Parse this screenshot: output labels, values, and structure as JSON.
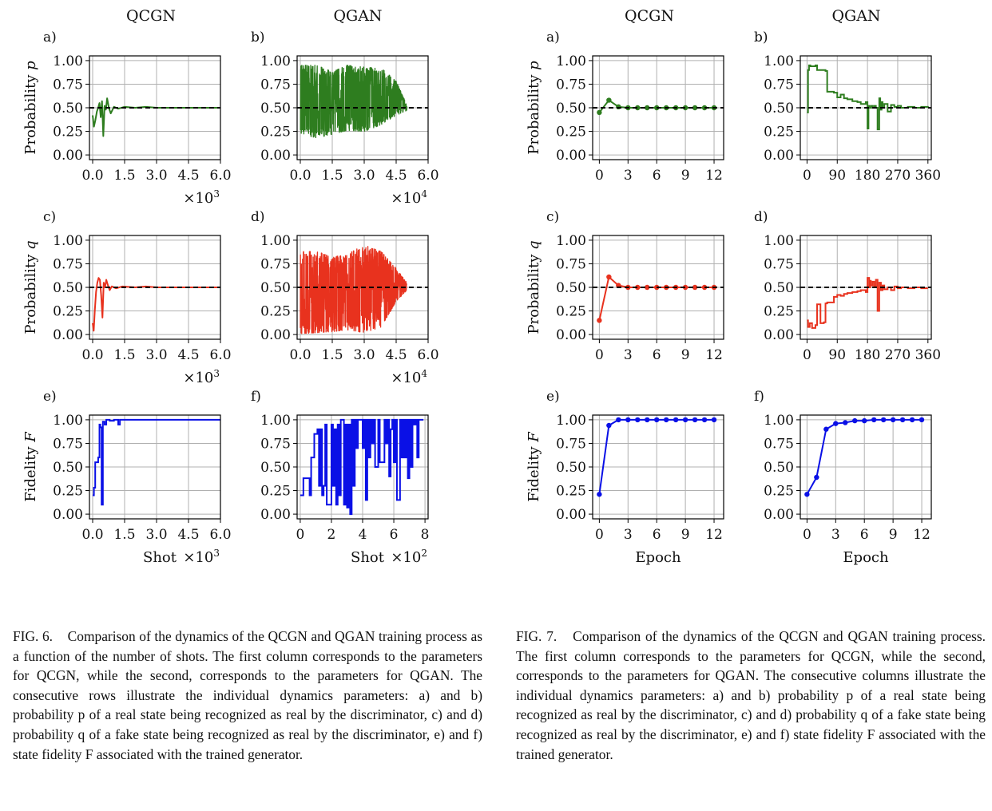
{
  "figures": [
    {
      "columns": [
        "QCGN",
        "QGAN"
      ],
      "caption": {
        "label": "FIG. 6.",
        "text": "Comparison of the dynamics of the QCGN and QGAN training process as a function of the number of shots. The first column corresponds to the parameters for QCGN, while the second, corresponds to the parameters for QGAN. The consecutive rows illustrate the individual dynamics parameters: a) and b) probability p of a real state being recognized as real by the discriminator, c) and d) probability q of a fake state being recognized as real by the discriminator, e) and f) state fidelity F associated with the trained generator."
      }
    },
    {
      "columns": [
        "QCGN",
        "QGAN"
      ],
      "caption": {
        "label": "FIG. 7.",
        "text": "Comparison of the dynamics of the QCGN and QGAN training process. The first column corresponds to the parameters for QCGN, while the second, corresponds to the parameters for QGAN. The consecutive columns illustrate the individual dynamics parameters: a) and b) probability p of a real state being recognized as real by the discriminator, c) and d) probability q of a fake state being recognized as real by the discriminator, e) and f) state fidelity F associated with the trained generator."
      }
    }
  ],
  "colors": {
    "p": "#2e7d1f",
    "q": "#e8321e",
    "F": "#0a10e6",
    "reference": "#000000",
    "grid": "#b0b0b0"
  },
  "chart_data": [
    {
      "id": "f6a",
      "figure": "FIG. 6",
      "panel": "a)",
      "type": "line",
      "ylabel": "Probability p",
      "xlabel": "",
      "xlim": [
        -150,
        6000
      ],
      "ylim": [
        -0.05,
        1.05
      ],
      "x_ticks": [
        "0.0",
        "1.5",
        "3.0",
        "4.5",
        "6.0"
      ],
      "x_multiplier": "×10³",
      "y_ticks": [
        "0.00",
        "0.25",
        "0.50",
        "0.75",
        "1.00"
      ],
      "reference_line": 0.5,
      "color_key": "p",
      "draw": "noisy-converge",
      "x": [
        0,
        60,
        120,
        200,
        260,
        320,
        380,
        440,
        500,
        560,
        620,
        680,
        760,
        850,
        1000,
        1200,
        1500,
        2000,
        2500,
        3000,
        4000,
        5000,
        6000
      ],
      "y": [
        0.42,
        0.3,
        0.36,
        0.46,
        0.5,
        0.55,
        0.4,
        0.57,
        0.2,
        0.52,
        0.48,
        0.6,
        0.5,
        0.44,
        0.51,
        0.49,
        0.51,
        0.5,
        0.51,
        0.5,
        0.5,
        0.5,
        0.5
      ]
    },
    {
      "id": "f6b",
      "figure": "FIG. 6",
      "panel": "b)",
      "type": "line",
      "ylabel": "",
      "xlabel": "",
      "xlim": [
        -1500,
        60000
      ],
      "ylim": [
        -0.05,
        1.05
      ],
      "x_ticks": [
        "0.0",
        "1.5",
        "3.0",
        "4.5",
        "6.0"
      ],
      "x_multiplier": "×10⁴",
      "y_ticks": [
        "0.00",
        "0.25",
        "0.50",
        "0.75",
        "1.00"
      ],
      "reference_line": 0.5,
      "color_key": "p",
      "draw": "noise",
      "noise_range": [
        0,
        50000
      ],
      "seed": 11,
      "envelope": {
        "x": [
          0,
          8000,
          15000,
          22000,
          30000,
          38000,
          45000,
          50000
        ],
        "low": [
          0.22,
          0.18,
          0.22,
          0.26,
          0.25,
          0.32,
          0.42,
          0.47
        ],
        "high": [
          0.95,
          0.95,
          0.88,
          0.95,
          0.93,
          0.92,
          0.78,
          0.53
        ]
      }
    },
    {
      "id": "f6c",
      "figure": "FIG. 6",
      "panel": "c)",
      "type": "line",
      "ylabel": "Probability q",
      "xlabel": "",
      "xlim": [
        -150,
        6000
      ],
      "ylim": [
        -0.05,
        1.05
      ],
      "x_ticks": [
        "0.0",
        "1.5",
        "3.0",
        "4.5",
        "6.0"
      ],
      "x_multiplier": "×10³",
      "y_ticks": [
        "0.00",
        "0.25",
        "0.50",
        "0.75",
        "1.00"
      ],
      "reference_line": 0.5,
      "color_key": "q",
      "draw": "noisy-converge",
      "x": [
        0,
        50,
        100,
        160,
        220,
        280,
        340,
        400,
        460,
        520,
        580,
        640,
        720,
        800,
        900,
        1100,
        1400,
        2000,
        2500,
        3000,
        4000,
        5000,
        6000
      ],
      "y": [
        0.12,
        0.04,
        0.25,
        0.45,
        0.55,
        0.6,
        0.58,
        0.42,
        0.18,
        0.55,
        0.5,
        0.58,
        0.52,
        0.47,
        0.51,
        0.49,
        0.51,
        0.5,
        0.51,
        0.5,
        0.5,
        0.5,
        0.5
      ]
    },
    {
      "id": "f6d",
      "figure": "FIG. 6",
      "panel": "d)",
      "type": "line",
      "ylabel": "",
      "xlabel": "",
      "xlim": [
        -1500,
        60000
      ],
      "ylim": [
        -0.05,
        1.05
      ],
      "x_ticks": [
        "0.0",
        "1.5",
        "3.0",
        "4.5",
        "6.0"
      ],
      "x_multiplier": "×10⁴",
      "y_ticks": [
        "0.00",
        "0.25",
        "0.50",
        "0.75",
        "1.00"
      ],
      "reference_line": 0.5,
      "color_key": "q",
      "draw": "noise",
      "noise_range": [
        0,
        50000
      ],
      "seed": 23,
      "envelope": {
        "x": [
          0,
          8000,
          15000,
          22000,
          30000,
          38000,
          45000,
          50000
        ],
        "low": [
          0.01,
          0.02,
          0.03,
          0.05,
          0.02,
          0.08,
          0.35,
          0.47
        ],
        "high": [
          0.88,
          0.88,
          0.82,
          0.85,
          0.95,
          0.88,
          0.7,
          0.55
        ]
      }
    },
    {
      "id": "f6e",
      "figure": "FIG. 6",
      "panel": "e)",
      "type": "line",
      "ylabel": "Fidelity F",
      "xlabel": "Shot",
      "xlim": [
        -150,
        6000
      ],
      "ylim": [
        -0.05,
        1.05
      ],
      "x_ticks": [
        "0.0",
        "1.5",
        "3.0",
        "4.5",
        "6.0"
      ],
      "x_multiplier": "×10³",
      "y_ticks": [
        "0.00",
        "0.25",
        "0.50",
        "0.75",
        "1.00"
      ],
      "reference_line": null,
      "color_key": "F",
      "draw": "step",
      "x": [
        0,
        60,
        120,
        180,
        260,
        320,
        360,
        420,
        480,
        560,
        640,
        800,
        1000,
        1200,
        1280,
        1350,
        6000
      ],
      "y": [
        0.2,
        0.28,
        0.55,
        0.55,
        0.6,
        0.95,
        0.92,
        0.1,
        0.98,
        0.95,
        1.0,
        0.99,
        1.0,
        0.95,
        1.0,
        1.0,
        1.0
      ]
    },
    {
      "id": "f6f",
      "figure": "FIG. 6",
      "panel": "f)",
      "type": "line",
      "ylabel": "",
      "xlabel": "Shot",
      "xlim": [
        -20,
        820
      ],
      "ylim": [
        -0.05,
        1.05
      ],
      "x_ticks": [
        "0",
        "2",
        "4",
        "6",
        "8"
      ],
      "x_multiplier": "×10²",
      "y_ticks": [
        "0.00",
        "0.25",
        "0.50",
        "0.75",
        "1.00"
      ],
      "reference_line": null,
      "color_key": "F",
      "draw": "step",
      "x": [
        0,
        20,
        60,
        70,
        90,
        110,
        120,
        130,
        140,
        150,
        160,
        170,
        200,
        210,
        220,
        230,
        240,
        250,
        260,
        280,
        290,
        300,
        310,
        320,
        330,
        340,
        350,
        360,
        370,
        400,
        410,
        420,
        430,
        440,
        450,
        460,
        470,
        480,
        500,
        510,
        540,
        550,
        560,
        570,
        580,
        590,
        600,
        610,
        620,
        640,
        650,
        660,
        670,
        680,
        690,
        700,
        710,
        720,
        730,
        740,
        750,
        760,
        770,
        780,
        790
      ],
      "y": [
        0.2,
        0.38,
        0.2,
        0.6,
        0.85,
        0.9,
        0.3,
        0.9,
        0.2,
        0.3,
        0.95,
        0.1,
        0.95,
        0.3,
        0.9,
        0.1,
        0.95,
        0.2,
        1.0,
        0.1,
        0.95,
        0.07,
        0.95,
        0.0,
        1.0,
        0.3,
        1.0,
        0.7,
        1.0,
        0.7,
        1.0,
        0.15,
        1.0,
        0.6,
        1.0,
        0.75,
        1.0,
        0.5,
        1.0,
        0.55,
        1.0,
        0.75,
        1.0,
        0.4,
        0.9,
        1.0,
        0.55,
        1.0,
        0.15,
        1.0,
        0.6,
        1.0,
        0.6,
        1.0,
        0.38,
        1.0,
        0.5,
        1.0,
        0.95,
        1.0,
        0.6,
        1.0,
        1.0,
        1.0,
        1.0
      ]
    },
    {
      "id": "f7a",
      "figure": "FIG. 7",
      "panel": "a)",
      "type": "line",
      "ylabel": "Probability p",
      "xlabel": "",
      "xlim": [
        -0.7,
        13
      ],
      "ylim": [
        -0.05,
        1.05
      ],
      "x_ticks": [
        "0",
        "3",
        "6",
        "9",
        "12"
      ],
      "x_multiplier": "",
      "y_ticks": [
        "0.00",
        "0.25",
        "0.50",
        "0.75",
        "1.00"
      ],
      "reference_line": 0.5,
      "color_key": "p",
      "draw": "line-markers",
      "x": [
        0,
        1,
        2,
        3,
        4,
        5,
        6,
        7,
        8,
        9,
        10,
        11,
        12
      ],
      "y": [
        0.45,
        0.58,
        0.51,
        0.5,
        0.5,
        0.5,
        0.5,
        0.5,
        0.5,
        0.5,
        0.5,
        0.5,
        0.5
      ]
    },
    {
      "id": "f7b",
      "figure": "FIG. 7",
      "panel": "b)",
      "type": "line",
      "ylabel": "",
      "xlabel": "",
      "xlim": [
        -20,
        370
      ],
      "ylim": [
        -0.05,
        1.05
      ],
      "x_ticks": [
        "0",
        "90",
        "180",
        "270",
        "360"
      ],
      "x_multiplier": "",
      "y_ticks": [
        "0.00",
        "0.25",
        "0.50",
        "0.75",
        "1.00"
      ],
      "reference_line": 0.5,
      "color_key": "p",
      "draw": "step",
      "x": [
        0,
        3,
        6,
        10,
        25,
        30,
        55,
        60,
        80,
        90,
        100,
        110,
        120,
        135,
        150,
        160,
        175,
        180,
        183,
        185,
        190,
        195,
        200,
        205,
        210,
        215,
        218,
        222,
        225,
        230,
        240,
        250,
        260,
        270,
        280,
        300,
        320,
        340,
        360
      ],
      "y": [
        0.45,
        0.9,
        0.95,
        0.94,
        0.95,
        0.9,
        0.89,
        0.67,
        0.66,
        0.61,
        0.64,
        0.6,
        0.59,
        0.57,
        0.56,
        0.54,
        0.56,
        0.28,
        0.52,
        0.5,
        0.52,
        0.5,
        0.52,
        0.5,
        0.27,
        0.6,
        0.48,
        0.56,
        0.5,
        0.54,
        0.46,
        0.53,
        0.51,
        0.52,
        0.5,
        0.51,
        0.5,
        0.51,
        0.5
      ]
    },
    {
      "id": "f7c",
      "figure": "FIG. 7",
      "panel": "c)",
      "type": "line",
      "ylabel": "Probability q",
      "xlabel": "",
      "xlim": [
        -0.7,
        13
      ],
      "ylim": [
        -0.05,
        1.05
      ],
      "x_ticks": [
        "0",
        "3",
        "6",
        "9",
        "12"
      ],
      "x_multiplier": "",
      "y_ticks": [
        "0.00",
        "0.25",
        "0.50",
        "0.75",
        "1.00"
      ],
      "reference_line": 0.5,
      "color_key": "q",
      "draw": "line-markers",
      "x": [
        0,
        1,
        2,
        3,
        4,
        5,
        6,
        7,
        8,
        9,
        10,
        11,
        12
      ],
      "y": [
        0.15,
        0.61,
        0.52,
        0.5,
        0.5,
        0.5,
        0.5,
        0.5,
        0.5,
        0.5,
        0.5,
        0.5,
        0.5
      ]
    },
    {
      "id": "f7d",
      "figure": "FIG. 7",
      "panel": "d)",
      "type": "line",
      "ylabel": "",
      "xlabel": "",
      "xlim": [
        -20,
        370
      ],
      "ylim": [
        -0.05,
        1.05
      ],
      "x_ticks": [
        "0",
        "90",
        "180",
        "270",
        "360"
      ],
      "x_multiplier": "",
      "y_ticks": [
        "0.00",
        "0.25",
        "0.50",
        "0.75",
        "1.00"
      ],
      "reference_line": 0.5,
      "color_key": "q",
      "draw": "step",
      "x": [
        0,
        3,
        8,
        15,
        25,
        30,
        40,
        50,
        55,
        60,
        80,
        90,
        100,
        110,
        120,
        135,
        150,
        160,
        175,
        180,
        185,
        188,
        190,
        195,
        200,
        205,
        210,
        215,
        220,
        225,
        230,
        240,
        250,
        260,
        270,
        280,
        300,
        320,
        340,
        360
      ],
      "y": [
        0.15,
        0.08,
        0.12,
        0.07,
        0.1,
        0.32,
        0.12,
        0.13,
        0.33,
        0.34,
        0.4,
        0.42,
        0.41,
        0.43,
        0.44,
        0.45,
        0.46,
        0.47,
        0.45,
        0.6,
        0.5,
        0.57,
        0.52,
        0.56,
        0.51,
        0.58,
        0.25,
        0.55,
        0.47,
        0.52,
        0.48,
        0.5,
        0.47,
        0.51,
        0.49,
        0.5,
        0.49,
        0.5,
        0.49,
        0.49
      ]
    },
    {
      "id": "f7e",
      "figure": "FIG. 7",
      "panel": "e)",
      "type": "line",
      "ylabel": "Fidelity F",
      "xlabel": "Epoch",
      "xlim": [
        -0.7,
        13
      ],
      "ylim": [
        -0.05,
        1.05
      ],
      "x_ticks": [
        "0",
        "3",
        "6",
        "9",
        "12"
      ],
      "x_multiplier": "",
      "y_ticks": [
        "0.00",
        "0.25",
        "0.50",
        "0.75",
        "1.00"
      ],
      "reference_line": null,
      "color_key": "F",
      "draw": "line-markers",
      "x": [
        0,
        1,
        2,
        3,
        4,
        5,
        6,
        7,
        8,
        9,
        10,
        11,
        12
      ],
      "y": [
        0.21,
        0.94,
        1.0,
        1.0,
        1.0,
        1.0,
        1.0,
        1.0,
        1.0,
        1.0,
        1.0,
        1.0,
        1.0
      ]
    },
    {
      "id": "f7f",
      "figure": "FIG. 7",
      "panel": "f)",
      "type": "line",
      "ylabel": "",
      "xlabel": "Epoch",
      "xlim": [
        -0.7,
        13
      ],
      "ylim": [
        -0.05,
        1.05
      ],
      "x_ticks": [
        "0",
        "3",
        "6",
        "9",
        "12"
      ],
      "x_multiplier": "",
      "y_ticks": [
        "0.00",
        "0.25",
        "0.50",
        "0.75",
        "1.00"
      ],
      "reference_line": null,
      "color_key": "F",
      "draw": "line-markers",
      "x": [
        0,
        1,
        2,
        3,
        4,
        5,
        6,
        7,
        8,
        9,
        10,
        11,
        12
      ],
      "y": [
        0.21,
        0.39,
        0.9,
        0.96,
        0.97,
        0.99,
        0.99,
        1.0,
        1.0,
        1.0,
        1.0,
        1.0,
        1.0
      ]
    }
  ]
}
